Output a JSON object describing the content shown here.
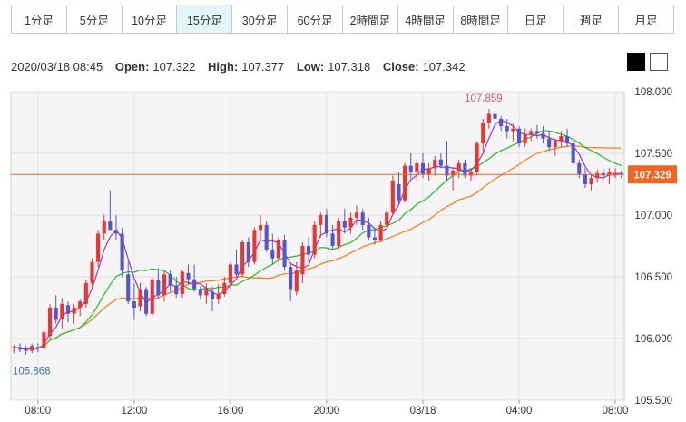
{
  "timeframe_tabs": [
    "1分足",
    "5分足",
    "10分足",
    "15分足",
    "30分足",
    "60分足",
    "2時間足",
    "4時間足",
    "8時間足",
    "日足",
    "週足",
    "月足"
  ],
  "active_tab_index": 3,
  "ohlc_info": {
    "datetime": "2020/03/18 08:45",
    "open_label": "Open:",
    "open": "107.322",
    "high_label": "High:",
    "high": "107.377",
    "low_label": "Low:",
    "low": "107.318",
    "close_label": "Close:",
    "close": "107.342"
  },
  "theme_buttons": [
    "dark-theme",
    "light-theme"
  ],
  "colors": {
    "up": "#ee3333",
    "down": "#5555cc",
    "ma_short": "#9933cc",
    "ma_mid": "#22bb22",
    "ma_long": "#ff7711",
    "price_line": "#ee6622",
    "high_label": "#e8506e",
    "low_label": "#3a6fb5"
  },
  "chart_data": {
    "type": "candlestick",
    "ylim": [
      105.5,
      108.0
    ],
    "y_ticks": [
      "108.000",
      "107.500",
      "107.000",
      "106.500",
      "106.000",
      "105.500"
    ],
    "x_tick_labels": [
      "08:00",
      "12:00",
      "16:00",
      "20:00",
      "03/18",
      "04:00",
      "08:00"
    ],
    "x_tick_index": [
      4,
      20,
      36,
      52,
      68,
      84,
      100
    ],
    "current_price": "107.329",
    "high_annotation": "107.859",
    "low_annotation": "105.868",
    "candles": [
      [
        105.92,
        105.95,
        105.88,
        105.93
      ],
      [
        105.93,
        105.96,
        105.89,
        105.91
      ],
      [
        105.91,
        105.94,
        105.87,
        105.9
      ],
      [
        105.9,
        105.96,
        105.88,
        105.94
      ],
      [
        105.93,
        105.96,
        105.89,
        105.92
      ],
      [
        105.92,
        106.08,
        105.9,
        106.05
      ],
      [
        106.02,
        106.28,
        106.0,
        106.25
      ],
      [
        106.25,
        106.35,
        106.12,
        106.15
      ],
      [
        106.16,
        106.33,
        106.08,
        106.28
      ],
      [
        106.27,
        106.3,
        106.13,
        106.2
      ],
      [
        106.2,
        106.28,
        106.12,
        106.25
      ],
      [
        106.25,
        106.32,
        106.18,
        106.3
      ],
      [
        106.28,
        106.48,
        106.25,
        106.45
      ],
      [
        106.45,
        106.65,
        106.4,
        106.62
      ],
      [
        106.62,
        106.88,
        106.58,
        106.85
      ],
      [
        106.85,
        107.0,
        106.8,
        106.95
      ],
      [
        106.95,
        107.2,
        106.88,
        106.88
      ],
      [
        106.88,
        107.0,
        106.8,
        106.85
      ],
      [
        106.85,
        106.9,
        106.5,
        106.55
      ],
      [
        106.52,
        106.62,
        106.28,
        106.3
      ],
      [
        106.3,
        106.45,
        106.15,
        106.25
      ],
      [
        106.26,
        106.45,
        106.22,
        106.4
      ],
      [
        106.4,
        106.42,
        106.18,
        106.2
      ],
      [
        106.2,
        106.5,
        106.18,
        106.48
      ],
      [
        106.47,
        106.57,
        106.32,
        106.35
      ],
      [
        106.35,
        106.55,
        106.3,
        106.52
      ],
      [
        106.52,
        106.55,
        106.38,
        106.43
      ],
      [
        106.43,
        106.5,
        106.33,
        106.36
      ],
      [
        106.36,
        106.56,
        106.33,
        106.54
      ],
      [
        106.53,
        106.6,
        106.44,
        106.48
      ],
      [
        106.48,
        106.6,
        106.38,
        106.4
      ],
      [
        106.4,
        106.42,
        106.32,
        106.35
      ],
      [
        106.35,
        106.45,
        106.28,
        106.4
      ],
      [
        106.38,
        106.42,
        106.22,
        106.32
      ],
      [
        106.32,
        106.44,
        106.28,
        106.36
      ],
      [
        106.36,
        106.5,
        106.34,
        106.45
      ],
      [
        106.45,
        106.62,
        106.4,
        106.6
      ],
      [
        106.6,
        106.72,
        106.5,
        106.52
      ],
      [
        106.52,
        106.8,
        106.5,
        106.78
      ],
      [
        106.78,
        106.82,
        106.58,
        106.62
      ],
      [
        106.62,
        106.9,
        106.6,
        106.88
      ],
      [
        106.88,
        107.0,
        106.8,
        106.92
      ],
      [
        106.92,
        106.95,
        106.7,
        106.72
      ],
      [
        106.72,
        106.85,
        106.6,
        106.65
      ],
      [
        106.65,
        106.82,
        106.62,
        106.8
      ],
      [
        106.8,
        106.84,
        106.55,
        106.58
      ],
      [
        106.58,
        106.6,
        106.3,
        106.4
      ],
      [
        106.38,
        106.62,
        106.35,
        106.55
      ],
      [
        106.52,
        106.78,
        106.45,
        106.75
      ],
      [
        106.75,
        106.82,
        106.62,
        106.68
      ],
      [
        106.68,
        106.95,
        106.65,
        106.92
      ],
      [
        106.92,
        107.02,
        106.82,
        107.0
      ],
      [
        107.0,
        107.05,
        106.82,
        106.85
      ],
      [
        106.85,
        106.92,
        106.72,
        106.75
      ],
      [
        106.75,
        106.98,
        106.72,
        106.95
      ],
      [
        106.95,
        107.05,
        106.85,
        106.9
      ],
      [
        106.9,
        107.02,
        106.85,
        106.98
      ],
      [
        106.98,
        107.08,
        106.92,
        107.02
      ],
      [
        107.02,
        107.05,
        106.88,
        106.92
      ],
      [
        106.92,
        106.98,
        106.8,
        106.82
      ],
      [
        106.82,
        106.88,
        106.76,
        106.8
      ],
      [
        106.8,
        106.95,
        106.78,
        106.92
      ],
      [
        106.92,
        107.05,
        106.88,
        107.02
      ],
      [
        107.02,
        107.32,
        107.0,
        107.28
      ],
      [
        107.25,
        107.35,
        107.08,
        107.12
      ],
      [
        107.12,
        107.42,
        107.1,
        107.4
      ],
      [
        107.4,
        107.5,
        107.3,
        107.35
      ],
      [
        107.35,
        107.45,
        107.28,
        107.42
      ],
      [
        107.42,
        107.5,
        107.3,
        107.33
      ],
      [
        107.33,
        107.42,
        107.28,
        107.38
      ],
      [
        107.38,
        107.48,
        107.32,
        107.45
      ],
      [
        107.45,
        107.5,
        107.38,
        107.4
      ],
      [
        107.4,
        107.6,
        107.28,
        107.32
      ],
      [
        107.32,
        107.38,
        107.2,
        107.36
      ],
      [
        107.36,
        107.45,
        107.3,
        107.42
      ],
      [
        107.42,
        107.45,
        107.3,
        107.32
      ],
      [
        107.32,
        107.38,
        107.28,
        107.35
      ],
      [
        107.35,
        107.6,
        107.32,
        107.58
      ],
      [
        107.58,
        107.78,
        107.52,
        107.75
      ],
      [
        107.75,
        107.86,
        107.7,
        107.82
      ],
      [
        107.82,
        107.85,
        107.72,
        107.78
      ],
      [
        107.78,
        107.8,
        107.68,
        107.72
      ],
      [
        107.72,
        107.78,
        107.62,
        107.68
      ],
      [
        107.68,
        107.74,
        107.6,
        107.7
      ],
      [
        107.7,
        107.72,
        107.55,
        107.58
      ],
      [
        107.58,
        107.7,
        107.55,
        107.65
      ],
      [
        107.65,
        107.7,
        107.6,
        107.68
      ],
      [
        107.68,
        107.73,
        107.62,
        107.66
      ],
      [
        107.66,
        107.72,
        107.58,
        107.62
      ],
      [
        107.62,
        107.68,
        107.52,
        107.55
      ],
      [
        107.55,
        107.62,
        107.48,
        107.6
      ],
      [
        107.6,
        107.68,
        107.55,
        107.64
      ],
      [
        107.64,
        107.7,
        107.55,
        107.58
      ],
      [
        107.58,
        107.6,
        107.4,
        107.42
      ],
      [
        107.42,
        107.45,
        107.3,
        107.33
      ],
      [
        107.33,
        107.38,
        107.22,
        107.25
      ],
      [
        107.25,
        107.33,
        107.2,
        107.3
      ],
      [
        107.3,
        107.37,
        107.26,
        107.34
      ],
      [
        107.34,
        107.38,
        107.28,
        107.32
      ],
      [
        107.32,
        107.38,
        107.25,
        107.35
      ],
      [
        107.32,
        107.38,
        107.3,
        107.34
      ],
      [
        107.34,
        107.36,
        107.3,
        107.33
      ]
    ]
  }
}
